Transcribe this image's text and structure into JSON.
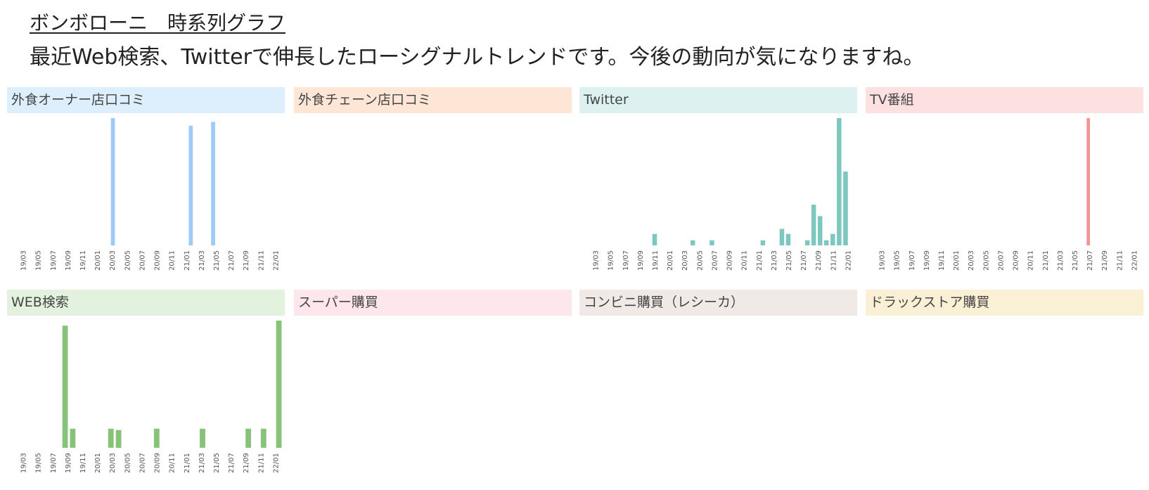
{
  "header": {
    "title": "ボンボローニ　時系列グラフ",
    "subtitle": "最近Web検索、Twitterで伸長したローシグナルトレンドです。今後の動向が気になりますね。"
  },
  "chart_data": [
    {
      "type": "bar",
      "title": "外食オーナー店口コミ",
      "header_color": "#ddeefc",
      "bar_color": "#9dcaf6",
      "tick_labels": [
        "19/03",
        "19/05",
        "19/07",
        "19/09",
        "19/11",
        "20/01",
        "20/03",
        "20/05",
        "20/07",
        "20/09",
        "20/11",
        "21/01",
        "21/03",
        "21/05",
        "21/07",
        "21/09",
        "21/11",
        "22/01"
      ],
      "series": [
        {
          "values": [
            0,
            0,
            0,
            0,
            0,
            0,
            0,
            0,
            0,
            0,
            0,
            0,
            0,
            0,
            0,
            0,
            0,
            1.0,
            0,
            0,
            0,
            0,
            0,
            0,
            0,
            0,
            0,
            0,
            0,
            0,
            0,
            0.94,
            0,
            0,
            0,
            0.97,
            0,
            0,
            0,
            0,
            0,
            0,
            0,
            0,
            0,
            0,
            0,
            0
          ]
        }
      ],
      "ylim": [
        0,
        1
      ]
    },
    {
      "type": "bar",
      "title": "外食チェーン店口コミ",
      "header_color": "#fde6d6",
      "bar_color": "#f5b98a",
      "tick_labels": [],
      "series": [
        {
          "values": []
        }
      ],
      "ylim": [
        0,
        1
      ]
    },
    {
      "type": "bar",
      "title": "Twitter",
      "header_color": "#ddf2f0",
      "bar_color": "#7cc8bf",
      "tick_labels": [
        "19/03",
        "19/05",
        "19/07",
        "19/09",
        "19/11",
        "20/01",
        "20/03",
        "20/05",
        "20/07",
        "20/09",
        "20/11",
        "21/01",
        "21/03",
        "21/05",
        "21/07",
        "21/09",
        "21/11",
        "22/01"
      ],
      "series": [
        {
          "values": [
            0,
            0,
            0,
            0,
            0,
            0,
            0,
            0,
            0,
            0,
            0.09,
            0,
            0,
            0,
            0,
            0,
            0.04,
            0,
            0,
            0.04,
            0,
            0,
            0,
            0,
            0,
            0,
            0,
            0.04,
            0,
            0,
            0.13,
            0.09,
            0,
            0,
            0.04,
            0.32,
            0.23,
            0.04,
            0.09,
            1.0,
            0.58,
            0
          ]
        }
      ],
      "ylim": [
        0,
        1
      ]
    },
    {
      "type": "bar",
      "title": "TV番組",
      "header_color": "#fde0e0",
      "bar_color": "#f29595",
      "tick_labels": [
        "19/03",
        "19/05",
        "19/07",
        "19/09",
        "19/11",
        "20/01",
        "20/03",
        "20/05",
        "20/07",
        "20/09",
        "20/11",
        "21/01",
        "21/03",
        "21/05",
        "21/07",
        "21/09",
        "21/11",
        "22/01"
      ],
      "series": [
        {
          "values": [
            0,
            0,
            0,
            0,
            0,
            0,
            0,
            0,
            0,
            0,
            0,
            0,
            0,
            0,
            0,
            0,
            0,
            0,
            0,
            0,
            0,
            0,
            0,
            0,
            0,
            0,
            0,
            0,
            0,
            0,
            0,
            0,
            0,
            0,
            0,
            0,
            0,
            0,
            0,
            0,
            0,
            0,
            0,
            0,
            0,
            0,
            1.0,
            0,
            0,
            0,
            0,
            0,
            0,
            0,
            0,
            0,
            0,
            0
          ]
        }
      ],
      "ylim": [
        0,
        1
      ]
    },
    {
      "type": "bar",
      "title": "WEB検索",
      "header_color": "#e3f2df",
      "bar_color": "#86c379",
      "tick_labels": [
        "19/03",
        "19/05",
        "19/07",
        "19/09",
        "19/11",
        "20/01",
        "20/03",
        "20/05",
        "20/07",
        "20/09",
        "20/11",
        "21/01",
        "21/03",
        "21/05",
        "21/07",
        "21/09",
        "21/11",
        "22/01"
      ],
      "series": [
        {
          "values": [
            0,
            0,
            0,
            0,
            0,
            0,
            0.96,
            0.15,
            0,
            0,
            0,
            0,
            0.15,
            0.14,
            0,
            0,
            0,
            0,
            0.15,
            0,
            0,
            0,
            0,
            0,
            0.15,
            0,
            0,
            0,
            0,
            0,
            0.15,
            0,
            0.15,
            0,
            1.0
          ]
        }
      ],
      "ylim": [
        0,
        1
      ]
    },
    {
      "type": "bar",
      "title": "スーパー購買",
      "header_color": "#fde6ec",
      "bar_color": "#f2a6bb",
      "tick_labels": [],
      "series": [
        {
          "values": []
        }
      ],
      "ylim": [
        0,
        1
      ]
    },
    {
      "type": "bar",
      "title": "コンビニ購買（レシーカ）",
      "header_color": "#f1e9e6",
      "bar_color": "#c8aea6",
      "tick_labels": [],
      "series": [
        {
          "values": []
        }
      ],
      "ylim": [
        0,
        1
      ]
    },
    {
      "type": "bar",
      "title": "ドラックストア購買",
      "header_color": "#faf0d6",
      "bar_color": "#e6cd86",
      "tick_labels": [],
      "series": [
        {
          "values": []
        }
      ],
      "ylim": [
        0,
        1
      ]
    }
  ]
}
